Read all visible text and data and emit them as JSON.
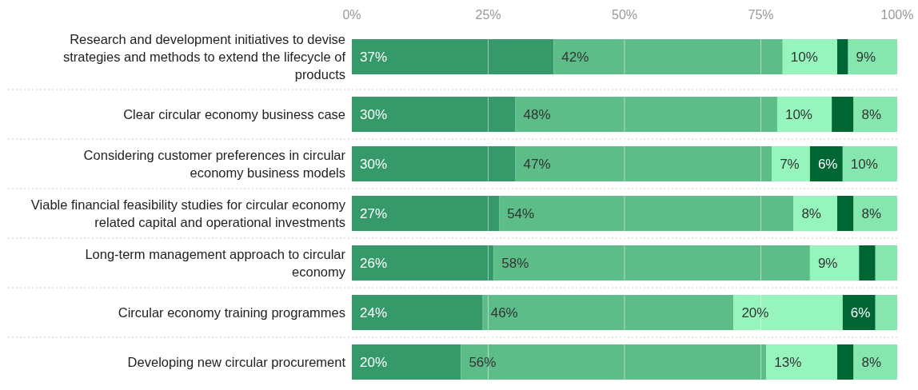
{
  "chart_data": {
    "type": "bar",
    "orientation": "horizontal",
    "stacked": true,
    "grid": "x",
    "categories": [
      "Research and development initiatives to devise strategies and methods to extend the lifecycle of products",
      "Clear circular economy business case",
      "Considering customer preferences in circular economy business models",
      "Viable financial feasibility studies for circular economy related capital and operational investments",
      "Long-term management approach to circular economy",
      "Circular economy training programmes",
      "Developing new circular procurement"
    ],
    "xlim": [
      0,
      100
    ],
    "xticks": [
      {
        "value": 0,
        "label": "0%"
      },
      {
        "value": 25,
        "label": "25%"
      },
      {
        "value": 50,
        "label": "50%"
      },
      {
        "value": 75,
        "label": "75%"
      },
      {
        "value": 100,
        "label": "100%"
      }
    ],
    "series": [
      {
        "color": "#35996a",
        "values": [
          37,
          30,
          30,
          27,
          26,
          24,
          20
        ],
        "value_labels": [
          "37%",
          "30%",
          "30%",
          "27%",
          "26%",
          "24%",
          "20%"
        ]
      },
      {
        "color": "#5cbd89",
        "values": [
          42,
          48,
          47,
          54,
          58,
          46,
          56
        ],
        "value_labels": [
          "42%",
          "48%",
          "47%",
          "54%",
          "58%",
          "46%",
          "56%"
        ]
      },
      {
        "color": "#95f5bd",
        "values": [
          10,
          10,
          7,
          8,
          9,
          20,
          13
        ],
        "value_labels": [
          "10%",
          "10%",
          "7%",
          "8%",
          "9%",
          "20%",
          "13%"
        ]
      },
      {
        "color": "#006633",
        "values": [
          2,
          4,
          6,
          3,
          3,
          6,
          3
        ],
        "value_labels": [
          null,
          null,
          "6%",
          null,
          null,
          "6%",
          null
        ]
      },
      {
        "color": "#85e6ae",
        "values": [
          9,
          8,
          10,
          8,
          4,
          4,
          8
        ],
        "value_labels": [
          "9%",
          "8%",
          "10%",
          "8%",
          null,
          null,
          "8%"
        ]
      }
    ]
  }
}
